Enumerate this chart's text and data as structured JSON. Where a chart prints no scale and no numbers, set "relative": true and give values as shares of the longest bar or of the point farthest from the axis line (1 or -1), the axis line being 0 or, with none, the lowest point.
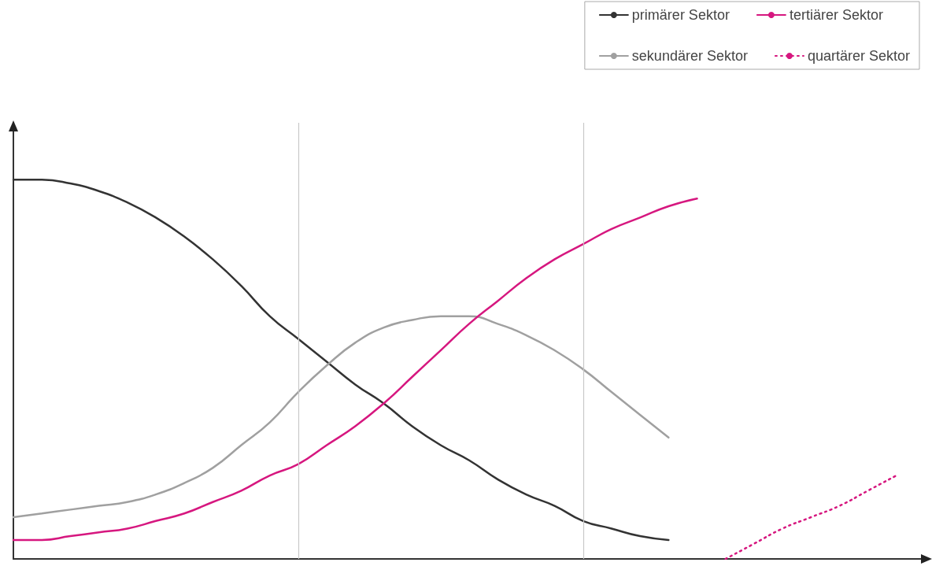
{
  "chart_data": {
    "type": "line",
    "relative": true,
    "categories": [
      null,
      null,
      null,
      null,
      null,
      null,
      null,
      null,
      null,
      null,
      null,
      null,
      null,
      null,
      null,
      null,
      null,
      null,
      null,
      null,
      null,
      null,
      null,
      null,
      null,
      null,
      null,
      null,
      null,
      null,
      null,
      null,
      null
    ],
    "series": [
      {
        "name": "primärer Sektor",
        "color": "#333333",
        "values": [
          1.0,
          1.0,
          0.99,
          0.97,
          0.94,
          0.9,
          0.85,
          0.79,
          0.72,
          0.64,
          0.58,
          0.52,
          0.46,
          0.41,
          0.35,
          0.3,
          0.26,
          0.21,
          0.17,
          0.14,
          0.1,
          0.08,
          0.06,
          0.05,
          null,
          null,
          null,
          null,
          null,
          null,
          null,
          null,
          null
        ]
      },
      {
        "name": "sekundärer Sektor",
        "color": "#a0a0a0",
        "values": [
          0.11,
          0.12,
          0.13,
          0.14,
          0.15,
          0.17,
          0.2,
          0.24,
          0.3,
          0.36,
          0.44,
          0.51,
          0.57,
          0.61,
          0.63,
          0.64,
          0.64,
          0.62,
          0.59,
          0.55,
          0.5,
          0.44,
          0.38,
          0.32,
          null,
          null,
          null,
          null,
          null,
          null,
          null,
          null,
          null
        ]
      },
      {
        "name": "tertiärer Sektor",
        "color": "#d6177f",
        "values": [
          0.05,
          0.05,
          0.06,
          0.07,
          0.08,
          0.1,
          0.12,
          0.15,
          0.18,
          0.22,
          0.25,
          0.3,
          0.35,
          0.41,
          0.48,
          0.55,
          0.62,
          0.68,
          0.74,
          0.79,
          0.83,
          0.87,
          0.9,
          0.93,
          0.95,
          null,
          null,
          null,
          null,
          null,
          null,
          null,
          null
        ]
      },
      {
        "name": "quartärer Sektor",
        "color": "#d6177f",
        "line_style": "dotted",
        "values": [
          null,
          null,
          null,
          null,
          null,
          null,
          null,
          null,
          null,
          null,
          null,
          null,
          null,
          null,
          null,
          null,
          null,
          null,
          null,
          null,
          null,
          null,
          null,
          null,
          null,
          0.0,
          0.04,
          0.08,
          0.11,
          0.14,
          0.18,
          0.22,
          null
        ]
      }
    ],
    "legend": "top right",
    "marker": "none",
    "line_style": "solid",
    "grid": false
  }
}
